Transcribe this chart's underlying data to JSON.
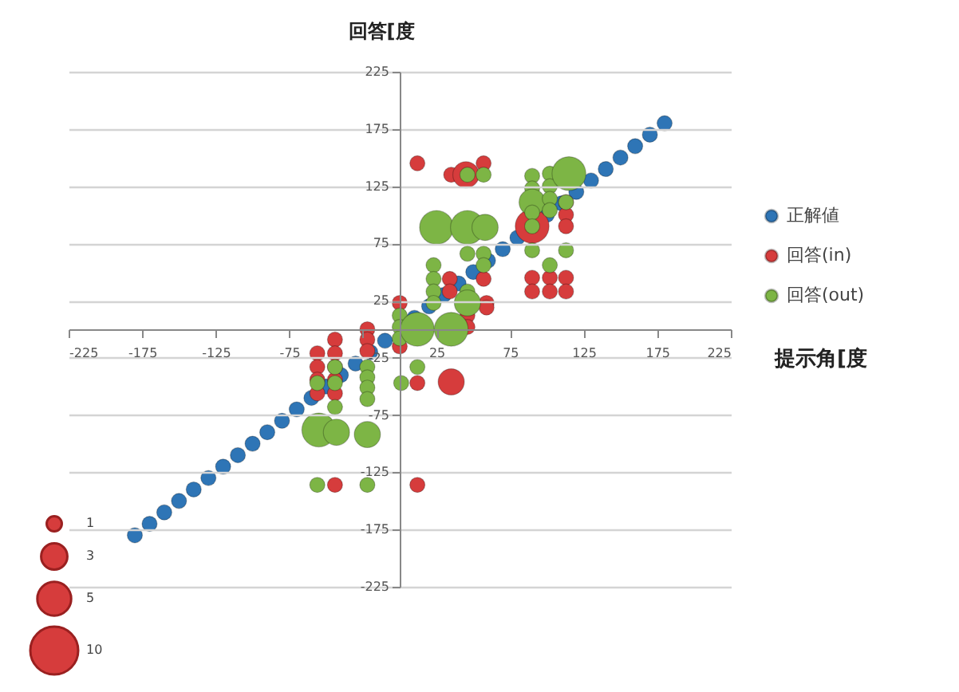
{
  "chart_data": {
    "type": "bubble",
    "xlabel": "提示角[度",
    "ylabel": "回答[度",
    "xlim": [
      -225,
      225
    ],
    "ylim": [
      -225,
      225
    ],
    "xticks": [
      -225,
      -175,
      -125,
      -75,
      {
        "value": -25,
        "label": null
      },
      25,
      75,
      125,
      175,
      225
    ],
    "yticks": [
      -225,
      -175,
      -125,
      -75,
      -25,
      25,
      75,
      125,
      175,
      225
    ],
    "grid": "y",
    "legend": "right",
    "marker": "circle",
    "size_legend": [
      1,
      3,
      5,
      10
    ],
    "series": [
      {
        "name": "正解値",
        "color": "#2e75b6",
        "x": [
          -180,
          -170,
          -160,
          -150,
          -140,
          -130,
          -120,
          -110,
          -100,
          -90,
          -80,
          -70,
          -60,
          -50,
          -40,
          -30,
          -20,
          -10,
          10,
          20,
          30,
          40,
          50,
          60,
          70,
          80,
          100,
          110,
          120,
          130,
          140,
          150,
          160,
          170,
          180
        ],
        "values": [
          -180,
          -170,
          -160,
          -150,
          -140,
          -130,
          -120,
          -110,
          -100,
          -90,
          -80,
          -70,
          -60,
          -50,
          -40,
          -30,
          -20,
          -10,
          10,
          20,
          30,
          40,
          50,
          60,
          70,
          80,
          100,
          110,
          120,
          130,
          140,
          150,
          160,
          170,
          180
        ],
        "sizes": [
          1,
          1,
          1,
          1,
          1,
          1,
          1,
          1,
          1,
          1,
          1,
          1,
          1,
          1,
          1,
          1,
          1,
          1,
          1,
          1,
          1,
          1,
          1,
          1,
          1,
          1,
          1,
          1,
          1,
          1,
          1,
          1,
          1,
          1,
          1
        ]
      },
      {
        "name": "回答(in)",
        "color": "#d63c3c",
        "x": [
          12,
          35,
          45,
          57,
          34,
          34,
          57,
          59,
          46,
          46,
          59,
          90,
          113,
          113,
          113,
          90,
          102,
          113,
          90,
          102,
          113,
          0,
          0,
          -22,
          -22,
          -22,
          -44,
          -44,
          -44,
          -44,
          -44,
          -56,
          -56,
          -56,
          -56,
          -44,
          12,
          12,
          35
        ],
        "values": [
          145,
          135,
          135,
          145,
          44,
          33,
          44,
          23,
          12,
          2,
          19,
          90,
          111,
          100,
          90,
          45,
          45,
          45,
          33,
          33,
          33,
          23,
          -15,
          0,
          -9,
          -19,
          -9,
          -21,
          -33,
          -44,
          -56,
          -21,
          -33,
          -44,
          -56,
          -136,
          -136,
          -47,
          -46
        ],
        "sizes": [
          1,
          1,
          3,
          1,
          1,
          1,
          1,
          1,
          1,
          1,
          1,
          5,
          1,
          1,
          1,
          1,
          1,
          1,
          1,
          1,
          1,
          1,
          1,
          1,
          1,
          1,
          1,
          1,
          1,
          1,
          1,
          1,
          1,
          1,
          1,
          1,
          1,
          1,
          3
        ]
      },
      {
        "name": "回答(out)",
        "color": "#7db545",
        "x": [
          46,
          57,
          25,
          46,
          58,
          46,
          57,
          57,
          23,
          23,
          23,
          23,
          46,
          46,
          90,
          90,
          90,
          90,
          90,
          102,
          102,
          102,
          102,
          115,
          113,
          90,
          113,
          102,
          0,
          0,
          0,
          12,
          35,
          -22,
          -22,
          -22,
          -22,
          -44,
          -44,
          -56,
          -44,
          -55,
          -43,
          -22,
          -56,
          -22,
          1,
          12
        ],
        "values": [
          135,
          135,
          89,
          89,
          89,
          66,
          66,
          56,
          56,
          44,
          33,
          23,
          33,
          23,
          134,
          123,
          111,
          102,
          90,
          136,
          125,
          114,
          104,
          136,
          111,
          69,
          69,
          56,
          12,
          2,
          -8,
          0,
          0,
          -33,
          -42,
          -51,
          -61,
          -33,
          -47,
          -47,
          -68,
          -88,
          -90,
          -92,
          -136,
          -136,
          -47,
          -33
        ],
        "sizes": [
          1,
          1,
          5,
          5,
          3,
          1,
          1,
          1,
          1,
          1,
          1,
          1,
          1,
          3,
          1,
          1,
          3,
          1,
          1,
          1,
          1,
          1,
          1,
          5,
          1,
          1,
          1,
          1,
          1,
          1,
          1,
          5,
          5,
          1,
          1,
          1,
          1,
          1,
          1,
          1,
          1,
          5,
          3,
          3,
          1,
          1,
          1,
          1
        ]
      }
    ]
  }
}
